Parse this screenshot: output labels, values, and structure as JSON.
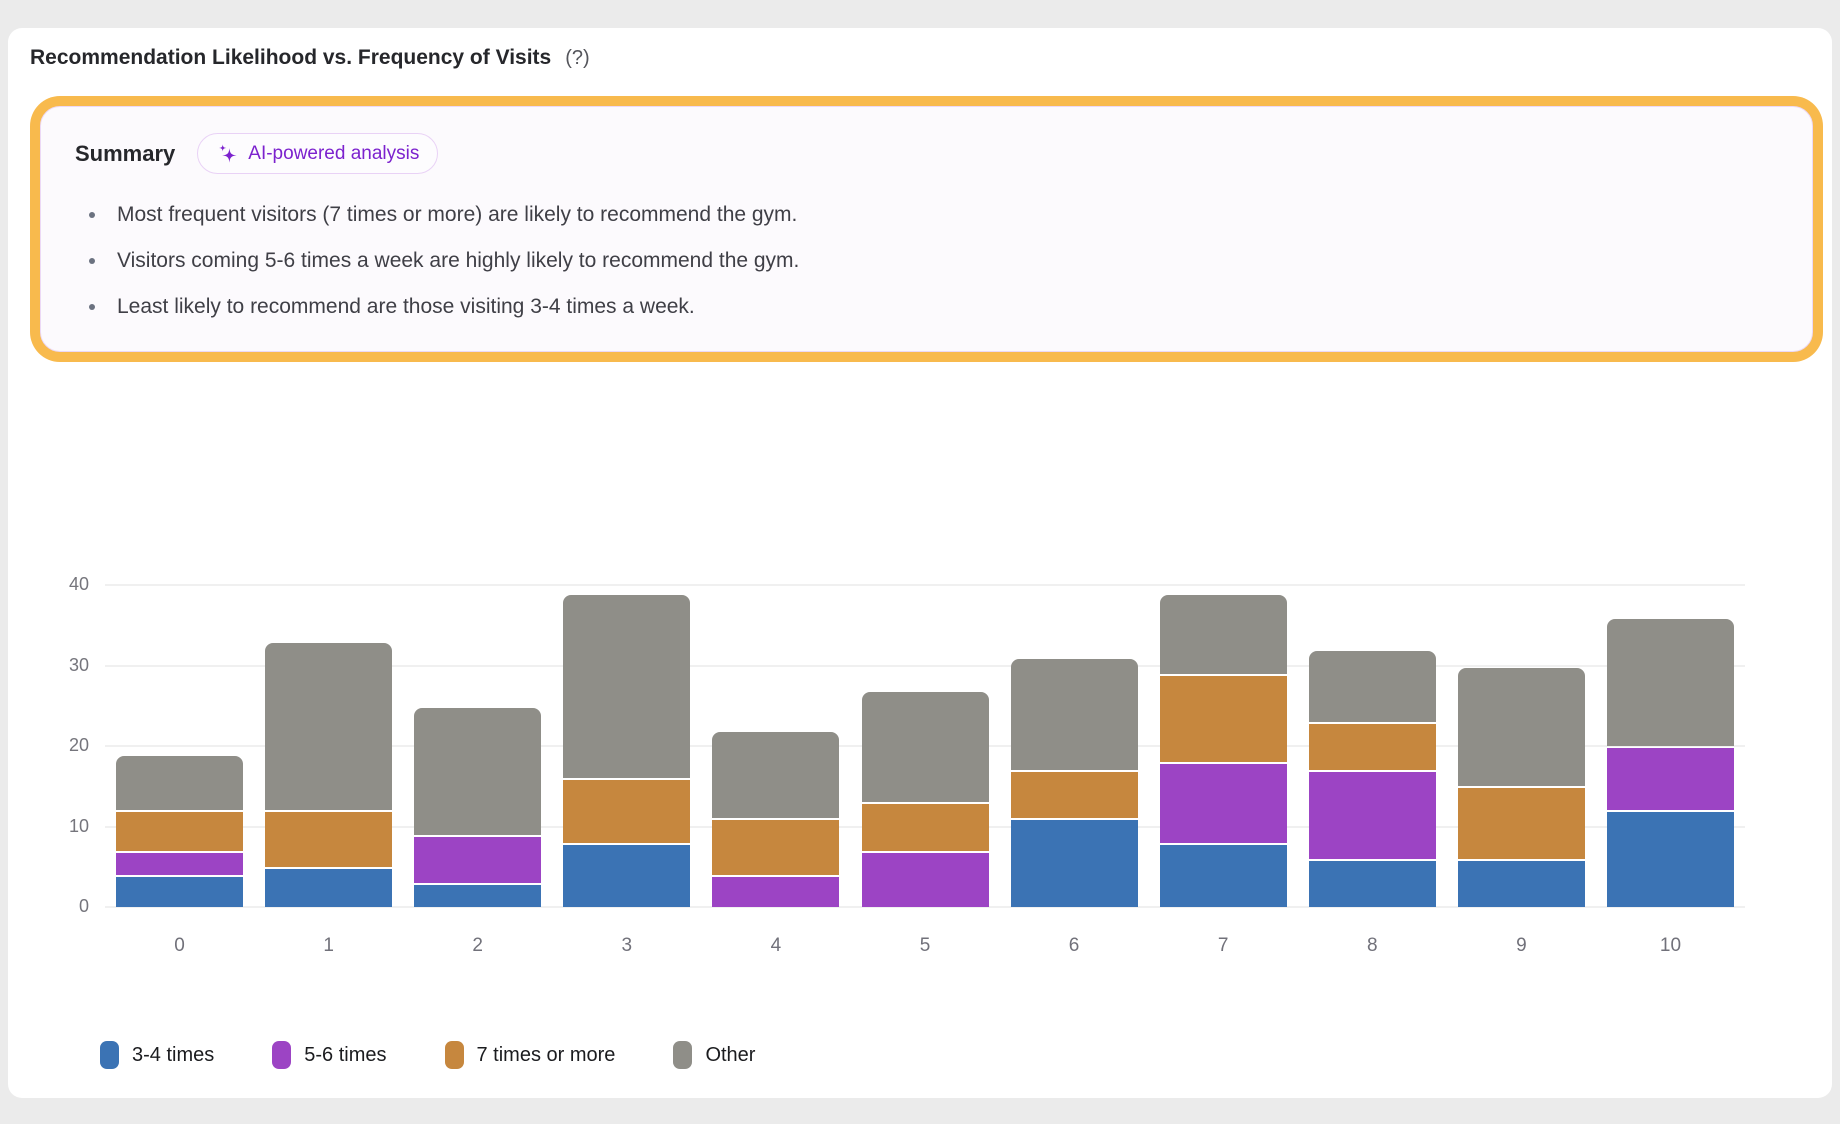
{
  "header": {
    "title": "Recommendation Likelihood vs. Frequency of Visits",
    "help_hint": "(?)"
  },
  "summary": {
    "heading": "Summary",
    "badge": {
      "icon": "sparkles-icon",
      "label": "AI-powered analysis",
      "text_color": "#7c22ce",
      "border_color": "#e9d2f6"
    },
    "border_color": "#f8ba4d",
    "background": "#fcfafd",
    "bullets": [
      "Most frequent visitors (7 times or more) are likely to recommend the gym.",
      "Visitors coming 5-6 times a week are highly likely to recommend the gym.",
      "Least likely to recommend are those visiting 3-4 times a week."
    ]
  },
  "chart_data": {
    "type": "bar",
    "stacked": true,
    "title": "",
    "xlabel": "",
    "ylabel": "",
    "categories": [
      "0",
      "1",
      "2",
      "3",
      "4",
      "5",
      "6",
      "7",
      "8",
      "9",
      "10"
    ],
    "series": [
      {
        "name": "3-4 times",
        "color": "#3B73B4",
        "values": [
          4,
          5,
          3,
          8,
          0,
          0,
          11,
          8,
          6,
          6,
          12
        ]
      },
      {
        "name": "5-6 times",
        "color": "#9C44C4",
        "values": [
          3,
          0,
          6,
          0,
          4,
          7,
          0,
          10,
          11,
          0,
          8
        ]
      },
      {
        "name": "7 times or more",
        "color": "#C6873E",
        "values": [
          5,
          7,
          0,
          8,
          7,
          6,
          6,
          11,
          6,
          9,
          0
        ]
      },
      {
        "name": "Other",
        "color": "#8F8E88",
        "values": [
          7,
          21,
          16,
          23,
          11,
          14,
          14,
          10,
          9,
          15,
          16
        ]
      }
    ],
    "stack_totals": [
      19,
      33,
      25,
      39,
      22,
      27,
      31,
      39,
      32,
      30,
      36
    ],
    "ylim": [
      0,
      40
    ],
    "yticks": [
      0,
      10,
      20,
      30,
      40
    ],
    "grid": true,
    "legend_position": "bottom"
  }
}
